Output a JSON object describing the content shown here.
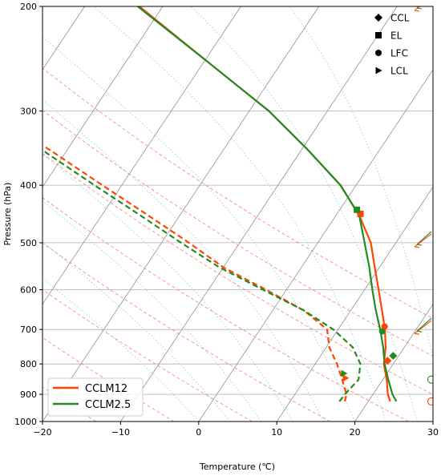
{
  "chart_data": {
    "type": "line",
    "subtype": "skew-t log-p diagram",
    "xlabel": "Temperature (℃)",
    "ylabel": "Pressure (hPa)",
    "xlim": [
      -20,
      30
    ],
    "ylim": [
      1000,
      200
    ],
    "y_scale": "log",
    "x_ticks": [
      -20,
      -10,
      0,
      10,
      20,
      30
    ],
    "y_ticks": [
      1000,
      900,
      800,
      700,
      600,
      500,
      400,
      300,
      200
    ],
    "grid": true,
    "legend_position": "lower-left",
    "marker_legend_position": "upper-right",
    "colors": {
      "CCLM12": "#ff4500",
      "CCLM2.5": "#228b22",
      "isotherm": "#808080",
      "dry_adiabat": "#fa8072",
      "moist_adiabat": "#87ceeb"
    },
    "series": [
      {
        "name": "CCLM12",
        "color": "#ff4500",
        "temperature": {
          "pressure": [
            925,
            900,
            850,
            800,
            750,
            700,
            650,
            600,
            550,
            500,
            450,
            400,
            350,
            300,
            250,
            200
          ],
          "values": [
            22.8,
            21.9,
            20.5,
            18.8,
            17.6,
            16.0,
            14.0,
            11.8,
            9.4,
            6.8,
            3.0,
            -2.0,
            -9.0,
            -17.5,
            -29.0,
            -43.0
          ]
        },
        "dewpoint": {
          "pressure": [
            925,
            900,
            850,
            800,
            750,
            700,
            650,
            600,
            550,
            500,
            450,
            400,
            350,
            300,
            250,
            200
          ],
          "values": [
            17.0,
            16.6,
            14.8,
            12.8,
            10.4,
            8.6,
            4.0,
            -2.6,
            -10.0,
            -16.5,
            -24.0,
            -32.5,
            -42.0,
            -53.5,
            -66.5,
            -82.0
          ]
        }
      },
      {
        "name": "CCLM2.5",
        "color": "#228b22",
        "temperature": {
          "pressure": [
            925,
            900,
            850,
            800,
            750,
            700,
            650,
            600,
            550,
            500,
            450,
            400,
            350,
            300,
            250,
            200
          ],
          "values": [
            23.6,
            22.5,
            20.7,
            18.9,
            17.3,
            15.4,
            13.2,
            11.0,
            8.7,
            6.0,
            3.0,
            -2.0,
            -9.0,
            -17.5,
            -29.0,
            -43.2
          ]
        },
        "dewpoint": {
          "pressure": [
            925,
            900,
            850,
            800,
            750,
            700,
            650,
            600,
            550,
            500,
            450,
            400,
            350,
            300,
            250,
            200
          ],
          "values": [
            16.3,
            16.4,
            16.9,
            15.8,
            13.4,
            9.4,
            4.0,
            -3.0,
            -10.5,
            -17.5,
            -25.0,
            -33.5,
            -43.0,
            -55.0,
            -68.5,
            -84.0
          ]
        }
      }
    ],
    "levels": [
      {
        "series": "CCLM12",
        "name": "CCL",
        "pressure": 790,
        "temperature": 19.0
      },
      {
        "series": "CCLM2.5",
        "name": "CCL",
        "pressure": 775,
        "temperature": 19.3
      },
      {
        "series": "CCLM12",
        "name": "EL",
        "pressure": 447,
        "temperature": 3.0
      },
      {
        "series": "CCLM2.5",
        "name": "EL",
        "pressure": 440,
        "temperature": 2.2
      },
      {
        "series": "CCLM12",
        "name": "LFC",
        "pressure": 692,
        "temperature": 15.7
      },
      {
        "series": "CCLM2.5",
        "name": "LFC",
        "pressure": 705,
        "temperature": 15.8
      },
      {
        "series": "CCLM12",
        "name": "LCL",
        "pressure": 845,
        "temperature": 15.1
      },
      {
        "series": "CCLM2.5",
        "name": "LCL",
        "pressure": 830,
        "temperature": 14.5
      }
    ],
    "wind_barbs": [
      {
        "series": "CCLM2.5",
        "pressure": 200,
        "u": 0,
        "v": 0,
        "style": "barbs"
      },
      {
        "series": "CCLM12",
        "pressure": 200,
        "u": 0,
        "v": 0,
        "style": "barbs"
      },
      {
        "series": "CCLM2.5",
        "pressure": 500,
        "u": 0,
        "v": 0,
        "style": "barbs"
      },
      {
        "series": "CCLM12",
        "pressure": 500,
        "u": 0,
        "v": 0,
        "style": "barbs"
      },
      {
        "series": "CCLM2.5",
        "pressure": 700,
        "u": 0,
        "v": 0,
        "style": "barbs"
      },
      {
        "series": "CCLM12",
        "pressure": 700,
        "u": 0,
        "v": 0,
        "style": "barbs"
      },
      {
        "series": "CCLM2.5",
        "pressure": 850,
        "u": 0,
        "v": 0,
        "style": "calm"
      },
      {
        "series": "CCLM12",
        "pressure": 925,
        "u": 0,
        "v": 0,
        "style": "calm"
      }
    ],
    "marker_legend": [
      {
        "label": "CCL",
        "marker": "diamond"
      },
      {
        "label": "EL",
        "marker": "square"
      },
      {
        "label": "LFC",
        "marker": "circle"
      },
      {
        "label": "LCL",
        "marker": "triangle-right"
      }
    ],
    "legend": [
      {
        "label": "CCLM12",
        "color": "#ff4500"
      },
      {
        "label": "CCLM2.5",
        "color": "#228b22"
      }
    ]
  }
}
